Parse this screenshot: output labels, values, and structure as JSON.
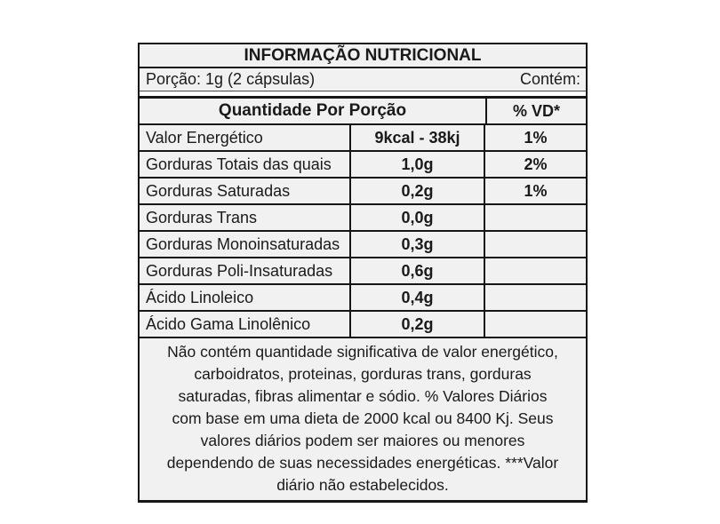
{
  "colors": {
    "cell_bg": "#f1f1f1",
    "rule": "#161616",
    "text": "#1a1a1a",
    "page_bg": "#ffffff"
  },
  "table": {
    "title": "INFORMAÇÃO NUTRICIONAL",
    "serving": {
      "portion": "Porção: 1g (2 cápsulas)",
      "contains_label": "Contém:"
    },
    "headers": {
      "amount_per_serving": "Quantidade Por Porção",
      "daily_value": "% VD*"
    },
    "rows": [
      {
        "name": "Valor Energético",
        "amount": "9kcal - 38kj",
        "dv": "1%"
      },
      {
        "name": "Gorduras Totais das quais",
        "amount": "1,0g",
        "dv": "2%"
      },
      {
        "name": "Gorduras Saturadas",
        "amount": "0,2g",
        "dv": "1%"
      },
      {
        "name": "Gorduras Trans",
        "amount": "0,0g",
        "dv": ""
      },
      {
        "name": "Gorduras Monoinsaturadas",
        "amount": "0,3g",
        "dv": ""
      },
      {
        "name": "Gorduras Poli-Insaturadas",
        "amount": "0,6g",
        "dv": ""
      },
      {
        "name": "Ácido Linoleico",
        "amount": "0,4g",
        "dv": ""
      },
      {
        "name": "Ácido Gama Linolênico",
        "amount": "0,2g",
        "dv": ""
      }
    ],
    "footnote_lines": [
      "Não contém quantidade significativa de valor energético,",
      "carboidratos, proteinas, gorduras trans, gorduras",
      "saturadas, fibras alimentar e sódio. % Valores Diários",
      "com base em uma dieta de 2000 kcal ou 8400 Kj. Seus",
      "valores diários podem ser maiores ou menores",
      "dependendo de suas necessidades energéticas. ***Valor",
      "diário não estabelecidos."
    ]
  }
}
